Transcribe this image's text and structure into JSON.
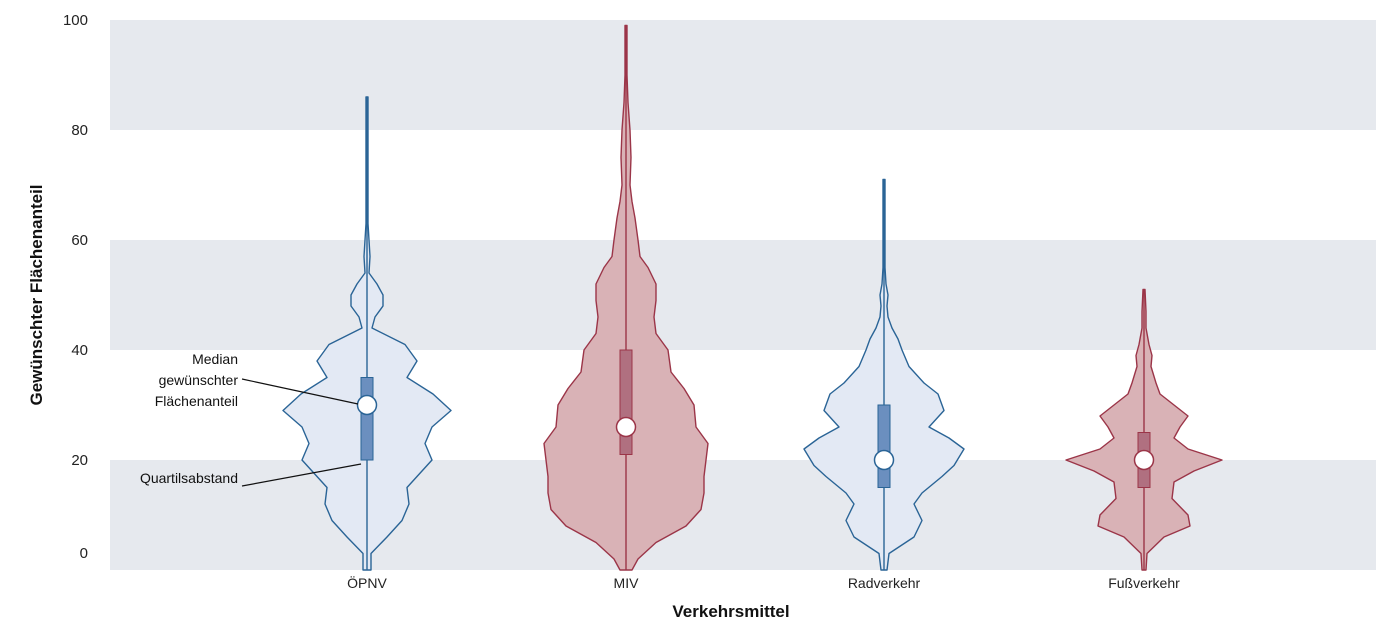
{
  "chart_data": {
    "type": "violin",
    "xlabel": "Verkehrsmittel",
    "ylabel": "Gewünschter Flächenanteil",
    "ylim": [
      0,
      100
    ],
    "yticks": [
      0,
      20,
      40,
      60,
      80,
      100
    ],
    "grid": "alternating horizontal bands",
    "categories": [
      "ÖPNV",
      "MIV",
      "Radverkehr",
      "Fußverkehr"
    ],
    "series": [
      {
        "category": "ÖPNV",
        "color": "#2a6496",
        "fill": "#e3e9f4",
        "box_color": "#6b8fbf",
        "median": 30,
        "q1": 20,
        "q3": 35,
        "min": 0,
        "max": 86,
        "profile": [
          [
            0,
            4
          ],
          [
            3,
            4
          ],
          [
            6,
            20
          ],
          [
            9,
            35
          ],
          [
            12,
            42
          ],
          [
            15,
            40
          ],
          [
            18,
            55
          ],
          [
            20,
            65
          ],
          [
            23,
            58
          ],
          [
            26,
            65
          ],
          [
            29,
            84
          ],
          [
            32,
            66
          ],
          [
            35,
            40
          ],
          [
            38,
            50
          ],
          [
            41,
            38
          ],
          [
            44,
            5
          ],
          [
            46,
            8
          ],
          [
            48,
            16
          ],
          [
            50,
            16
          ],
          [
            52,
            10
          ],
          [
            54,
            2
          ],
          [
            57,
            3
          ],
          [
            60,
            2
          ],
          [
            63,
            1
          ],
          [
            70,
            1
          ],
          [
            86,
            1
          ]
        ]
      },
      {
        "category": "MIV",
        "color": "#9b3548",
        "fill": "#d9b2b6",
        "box_color": "#b07080",
        "median": 26,
        "q1": 21,
        "q3": 40,
        "min": 0,
        "max": 99,
        "profile": [
          [
            0,
            6
          ],
          [
            2,
            12
          ],
          [
            5,
            30
          ],
          [
            8,
            60
          ],
          [
            11,
            75
          ],
          [
            14,
            78
          ],
          [
            17,
            78
          ],
          [
            20,
            80
          ],
          [
            23,
            82
          ],
          [
            26,
            70
          ],
          [
            30,
            68
          ],
          [
            33,
            58
          ],
          [
            36,
            45
          ],
          [
            40,
            42
          ],
          [
            43,
            30
          ],
          [
            46,
            28
          ],
          [
            49,
            30
          ],
          [
            52,
            30
          ],
          [
            55,
            22
          ],
          [
            57,
            14
          ],
          [
            60,
            12
          ],
          [
            64,
            9
          ],
          [
            67,
            6
          ],
          [
            70,
            4
          ],
          [
            75,
            5
          ],
          [
            80,
            4
          ],
          [
            85,
            2
          ],
          [
            90,
            1
          ],
          [
            99,
            1
          ]
        ]
      },
      {
        "category": "Radverkehr",
        "color": "#2a6496",
        "fill": "#e3e9f4",
        "box_color": "#6b8fbf",
        "median": 20,
        "q1": 15,
        "q3": 30,
        "min": 0,
        "max": 71,
        "profile": [
          [
            0,
            3
          ],
          [
            3,
            5
          ],
          [
            6,
            30
          ],
          [
            9,
            38
          ],
          [
            12,
            30
          ],
          [
            14,
            38
          ],
          [
            17,
            58
          ],
          [
            19,
            70
          ],
          [
            22,
            80
          ],
          [
            24,
            65
          ],
          [
            26,
            45
          ],
          [
            29,
            60
          ],
          [
            32,
            54
          ],
          [
            34,
            40
          ],
          [
            37,
            25
          ],
          [
            40,
            18
          ],
          [
            42,
            14
          ],
          [
            44,
            8
          ],
          [
            46,
            4
          ],
          [
            48,
            3
          ],
          [
            50,
            4
          ],
          [
            52,
            2
          ],
          [
            55,
            1
          ],
          [
            60,
            1
          ],
          [
            71,
            1
          ]
        ]
      },
      {
        "category": "Fußverkehr",
        "color": "#9b3548",
        "fill": "#d9b2b6",
        "box_color": "#b07080",
        "median": 20,
        "q1": 15,
        "q3": 25,
        "min": 0,
        "max": 51,
        "profile": [
          [
            0,
            2
          ],
          [
            3,
            3
          ],
          [
            6,
            20
          ],
          [
            8,
            46
          ],
          [
            10,
            44
          ],
          [
            13,
            28
          ],
          [
            16,
            30
          ],
          [
            18,
            50
          ],
          [
            20,
            78
          ],
          [
            22,
            44
          ],
          [
            24,
            30
          ],
          [
            26,
            36
          ],
          [
            28,
            44
          ],
          [
            30,
            30
          ],
          [
            32,
            16
          ],
          [
            34,
            12
          ],
          [
            37,
            7
          ],
          [
            39,
            8
          ],
          [
            41,
            5
          ],
          [
            44,
            2
          ],
          [
            47,
            2
          ],
          [
            51,
            1
          ]
        ]
      }
    ],
    "annotations": {
      "median_lines": [
        "Median",
        "gewünschter",
        "Flächenanteil"
      ],
      "iqr_label": "Quartilsabstand"
    }
  }
}
